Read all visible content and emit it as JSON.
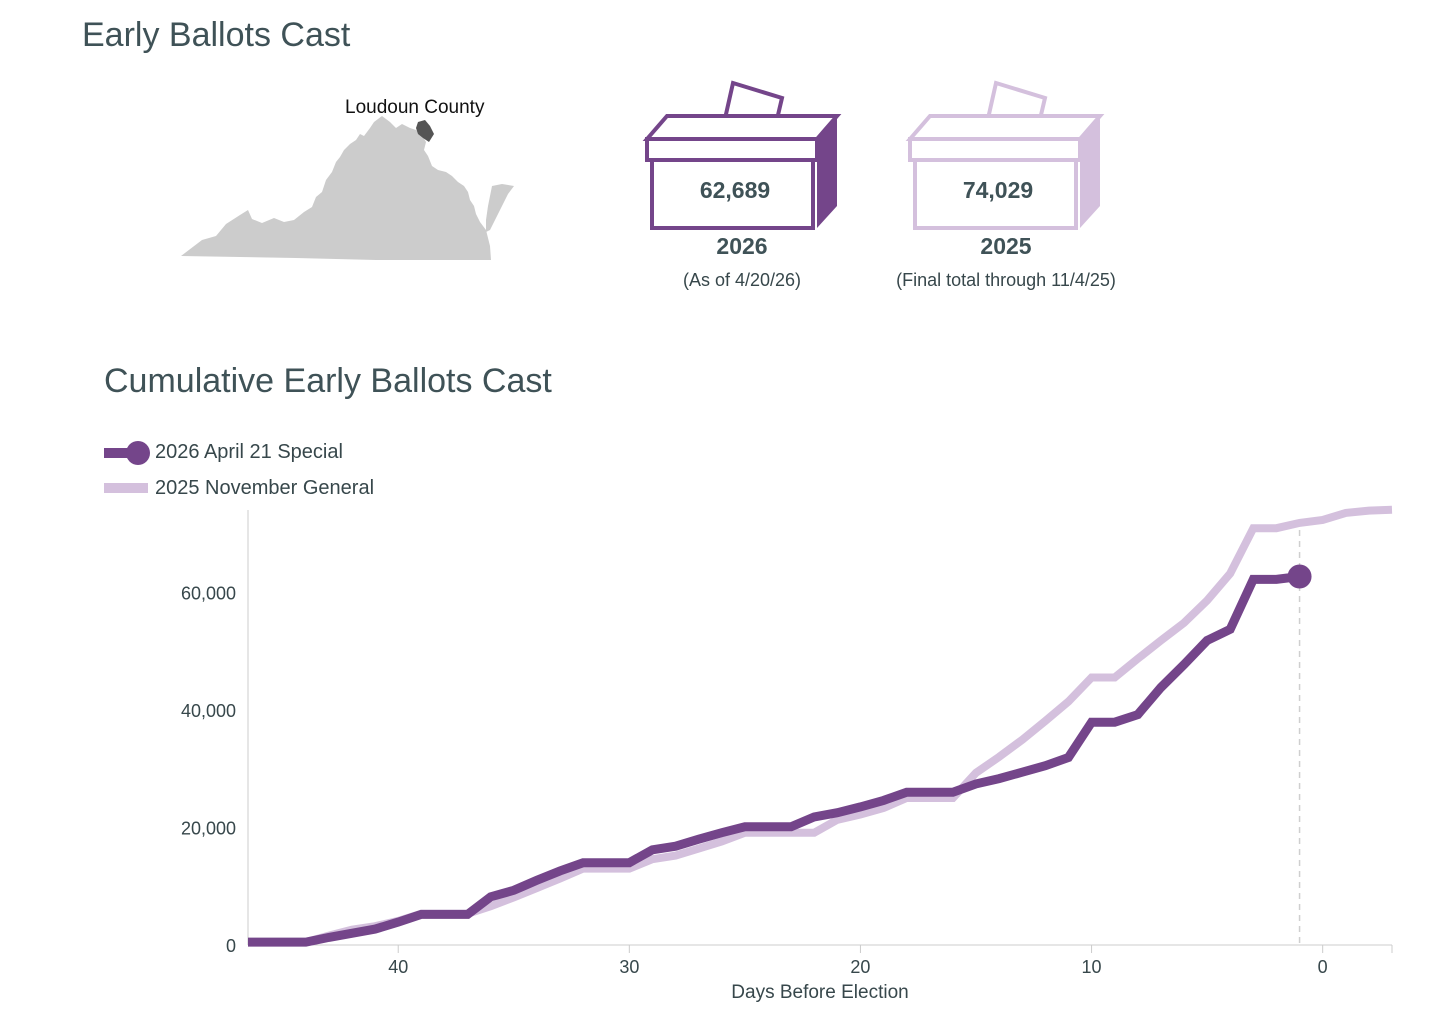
{
  "header": {
    "title": "Early Ballots Cast"
  },
  "map": {
    "label": "Loudoun County",
    "state_color": "#cccccc",
    "county_color": "#555555"
  },
  "stats": [
    {
      "count": "62,689",
      "year": "2026",
      "note": "(As of 4/20/26)",
      "color": "#74458a"
    },
    {
      "count": "74,029",
      "year": "2025",
      "note": "(Final total through 11/4/25)",
      "color": "#d4c0dd"
    }
  ],
  "chart_title": "Cumulative Early Ballots Cast",
  "chart_data": {
    "type": "line",
    "title": "Cumulative Early Ballots Cast",
    "xlabel": "Days Before Election",
    "ylabel": "",
    "x_reversed": true,
    "xlim": [
      46.5,
      -3
    ],
    "ylim": [
      0,
      74000
    ],
    "x_ticks": [
      40,
      30,
      20,
      10,
      0
    ],
    "y_ticks": [
      0,
      20000,
      40000,
      60000
    ],
    "y_tick_labels": [
      "0",
      "20,000",
      "40,000",
      "60,000"
    ],
    "legend_placement": "top-left",
    "election_day_marker_x": 1,
    "series": [
      {
        "name": "2026 April 21 Special",
        "color": "#74458a",
        "x": [
          46.5,
          44,
          43,
          41,
          40,
          39,
          37,
          36,
          35,
          34,
          33,
          32,
          30,
          29,
          28,
          27,
          26,
          25,
          23,
          22,
          21,
          20,
          19,
          18,
          16,
          15,
          14,
          13,
          12,
          11,
          10,
          9,
          8,
          7,
          6,
          5,
          4,
          3,
          2,
          1
        ],
        "values": [
          500,
          500,
          1300,
          2700,
          3900,
          5200,
          5200,
          8200,
          9300,
          11000,
          12600,
          14000,
          14000,
          16200,
          16800,
          18000,
          19100,
          20100,
          20100,
          21800,
          22500,
          23500,
          24600,
          26000,
          26000,
          27400,
          28300,
          29400,
          30500,
          31900,
          37900,
          37900,
          39200,
          43800,
          47700,
          51800,
          53700,
          62200,
          62200,
          62689
        ]
      },
      {
        "name": "2025 November General",
        "color": "#d4c0dd",
        "x": [
          46.5,
          44,
          43,
          42,
          41,
          40,
          39,
          37,
          36,
          35,
          34,
          33,
          32,
          30,
          29,
          28,
          27,
          26,
          25,
          23,
          22,
          21,
          20,
          19,
          18,
          16,
          15,
          14,
          13,
          12,
          11,
          10,
          9,
          8,
          7,
          6,
          5,
          4,
          3,
          2,
          1,
          0,
          -1,
          -2,
          -3
        ],
        "values": [
          500,
          500,
          1600,
          2600,
          3200,
          4100,
          5300,
          5300,
          6600,
          8100,
          9700,
          11300,
          13000,
          13000,
          14600,
          15200,
          16400,
          17600,
          19100,
          19100,
          19100,
          21300,
          22200,
          23300,
          25000,
          25000,
          29300,
          32000,
          34900,
          38100,
          41400,
          45500,
          45500,
          48700,
          51800,
          54800,
          58600,
          63200,
          70900,
          70900,
          71800,
          72300,
          73500,
          73900,
          74029
        ]
      }
    ]
  }
}
